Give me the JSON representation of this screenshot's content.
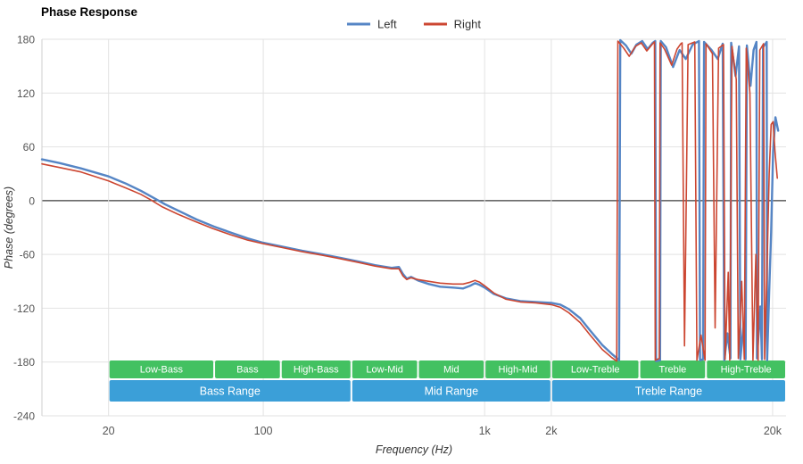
{
  "chart_data": {
    "type": "line",
    "title": "Phase Response",
    "xlabel": "Frequency (Hz)",
    "ylabel": "Phase (degrees)",
    "x_scale": "log",
    "xlim": [
      10,
      23000
    ],
    "ylim": [
      -240,
      180
    ],
    "y_ticks": [
      180,
      120,
      60,
      0,
      -60,
      -120,
      -180,
      -240
    ],
    "x_ticks": [
      {
        "label": "20",
        "value": 20
      },
      {
        "label": "100",
        "value": 100
      },
      {
        "label": "1k",
        "value": 1000
      },
      {
        "label": "2k",
        "value": 2000
      },
      {
        "label": "20k",
        "value": 20000
      }
    ],
    "grid": true,
    "legend_position": "top-center",
    "appearance": {
      "grid_color": "#e2e2e2",
      "zero_line_color": "#3c3c3c",
      "axis_line_color": "#cfcfcf",
      "tick_text_color": "#555555",
      "band_text_color": "#ffffff"
    },
    "series": [
      {
        "name": "Left",
        "color": "#5585c5",
        "width": 2.4,
        "points": [
          [
            10,
            46
          ],
          [
            12,
            42
          ],
          [
            15,
            36
          ],
          [
            20,
            27
          ],
          [
            24,
            19
          ],
          [
            28,
            11
          ],
          [
            32,
            3
          ],
          [
            36,
            -4
          ],
          [
            42,
            -12
          ],
          [
            50,
            -21
          ],
          [
            60,
            -29
          ],
          [
            72,
            -36
          ],
          [
            85,
            -42
          ],
          [
            100,
            -47
          ],
          [
            120,
            -51
          ],
          [
            150,
            -56
          ],
          [
            185,
            -60
          ],
          [
            225,
            -64
          ],
          [
            270,
            -68
          ],
          [
            320,
            -72
          ],
          [
            380,
            -75
          ],
          [
            410,
            -74
          ],
          [
            428,
            -82
          ],
          [
            445,
            -87
          ],
          [
            465,
            -85
          ],
          [
            500,
            -89
          ],
          [
            560,
            -93
          ],
          [
            630,
            -96
          ],
          [
            720,
            -97
          ],
          [
            800,
            -98
          ],
          [
            860,
            -95
          ],
          [
            905,
            -92
          ],
          [
            950,
            -94
          ],
          [
            1000,
            -97
          ],
          [
            1100,
            -104
          ],
          [
            1250,
            -109
          ],
          [
            1450,
            -112
          ],
          [
            1700,
            -113
          ],
          [
            2000,
            -114
          ],
          [
            2200,
            -116
          ],
          [
            2400,
            -121
          ],
          [
            2700,
            -131
          ],
          [
            3000,
            -145
          ],
          [
            3400,
            -161
          ],
          [
            3800,
            -172
          ],
          [
            4050,
            -178
          ],
          [
            4100,
            179
          ],
          [
            4350,
            173
          ],
          [
            4600,
            164
          ],
          [
            4850,
            174
          ],
          [
            5150,
            178
          ],
          [
            5450,
            169
          ],
          [
            5750,
            176
          ],
          [
            5900,
            178
          ],
          [
            5950,
            -179
          ],
          [
            6200,
            -178
          ],
          [
            6250,
            178
          ],
          [
            6600,
            171
          ],
          [
            7100,
            149
          ],
          [
            7600,
            168
          ],
          [
            8100,
            158
          ],
          [
            8700,
            174
          ],
          [
            9300,
            178
          ],
          [
            9400,
            -178
          ],
          [
            9700,
            -177
          ],
          [
            9800,
            177
          ],
          [
            10600,
            168
          ],
          [
            11300,
            158
          ],
          [
            11900,
            175
          ],
          [
            12100,
            -178
          ],
          [
            12500,
            -148
          ],
          [
            12900,
            -176
          ],
          [
            13000,
            176
          ],
          [
            13600,
            139
          ],
          [
            14100,
            172
          ],
          [
            14300,
            -177
          ],
          [
            14800,
            -138
          ],
          [
            15100,
            -177
          ],
          [
            15300,
            173
          ],
          [
            15900,
            128
          ],
          [
            16400,
            168
          ],
          [
            16900,
            177
          ],
          [
            17000,
            -176
          ],
          [
            17600,
            -118
          ],
          [
            17900,
            -177
          ],
          [
            18100,
            171
          ],
          [
            18800,
            177
          ],
          [
            18900,
            -178
          ],
          [
            19300,
            -102
          ],
          [
            19700,
            -35
          ],
          [
            20100,
            55
          ],
          [
            20600,
            93
          ],
          [
            21200,
            78
          ]
        ]
      },
      {
        "name": "Right",
        "color": "#cc4631",
        "width": 1.6,
        "points": [
          [
            10,
            41
          ],
          [
            12,
            37
          ],
          [
            15,
            32
          ],
          [
            20,
            22
          ],
          [
            24,
            14
          ],
          [
            28,
            7
          ],
          [
            31,
            1
          ],
          [
            35,
            -7
          ],
          [
            41,
            -15
          ],
          [
            49,
            -23
          ],
          [
            59,
            -31
          ],
          [
            71,
            -38
          ],
          [
            85,
            -44
          ],
          [
            100,
            -48
          ],
          [
            120,
            -52
          ],
          [
            150,
            -57
          ],
          [
            185,
            -61
          ],
          [
            225,
            -65
          ],
          [
            270,
            -69
          ],
          [
            320,
            -73
          ],
          [
            380,
            -76
          ],
          [
            410,
            -76
          ],
          [
            428,
            -84
          ],
          [
            445,
            -88
          ],
          [
            465,
            -86
          ],
          [
            500,
            -88
          ],
          [
            560,
            -90
          ],
          [
            630,
            -92
          ],
          [
            720,
            -93
          ],
          [
            800,
            -93
          ],
          [
            860,
            -91
          ],
          [
            905,
            -89
          ],
          [
            950,
            -91
          ],
          [
            1000,
            -95
          ],
          [
            1100,
            -103
          ],
          [
            1250,
            -110
          ],
          [
            1450,
            -113
          ],
          [
            1700,
            -114
          ],
          [
            2000,
            -116
          ],
          [
            2200,
            -119
          ],
          [
            2400,
            -125
          ],
          [
            2700,
            -136
          ],
          [
            3000,
            -150
          ],
          [
            3400,
            -166
          ],
          [
            3750,
            -175
          ],
          [
            3950,
            -179
          ],
          [
            4000,
            178
          ],
          [
            4250,
            170
          ],
          [
            4500,
            161
          ],
          [
            4800,
            172
          ],
          [
            5100,
            176
          ],
          [
            5400,
            167
          ],
          [
            5700,
            174
          ],
          [
            5850,
            177
          ],
          [
            5900,
            -178
          ],
          [
            6150,
            -176
          ],
          [
            6200,
            176
          ],
          [
            6500,
            169
          ],
          [
            7000,
            151
          ],
          [
            7400,
            169
          ],
          [
            7700,
            175
          ],
          [
            7800,
            176
          ],
          [
            8000,
            -162
          ],
          [
            8300,
            174
          ],
          [
            8900,
            177
          ],
          [
            9100,
            -178
          ],
          [
            9500,
            -150
          ],
          [
            9900,
            -178
          ],
          [
            10000,
            175
          ],
          [
            10700,
            164
          ],
          [
            11000,
            -142
          ],
          [
            11400,
            170
          ],
          [
            12000,
            174
          ],
          [
            12200,
            -177
          ],
          [
            12600,
            -80
          ],
          [
            12800,
            -178
          ],
          [
            13100,
            172
          ],
          [
            13700,
            135
          ],
          [
            14000,
            -176
          ],
          [
            14500,
            -90
          ],
          [
            14900,
            -177
          ],
          [
            15200,
            170
          ],
          [
            15800,
            120
          ],
          [
            16300,
            -178
          ],
          [
            16800,
            -60
          ],
          [
            17200,
            -178
          ],
          [
            17500,
            168
          ],
          [
            18200,
            175
          ],
          [
            18400,
            -177
          ],
          [
            18900,
            -70
          ],
          [
            19300,
            30
          ],
          [
            19700,
            85
          ],
          [
            20100,
            88
          ],
          [
            20500,
            55
          ],
          [
            21000,
            25
          ]
        ]
      }
    ],
    "bands": {
      "sub_bands": {
        "color": "#43c161",
        "items": [
          {
            "label": "Low-Bass",
            "from": 20,
            "to": 60
          },
          {
            "label": "Bass",
            "from": 60,
            "to": 120
          },
          {
            "label": "High-Bass",
            "from": 120,
            "to": 250
          },
          {
            "label": "Low-Mid",
            "from": 250,
            "to": 500
          },
          {
            "label": "Mid",
            "from": 500,
            "to": 1000
          },
          {
            "label": "High-Mid",
            "from": 1000,
            "to": 2000
          },
          {
            "label": "Low-Treble",
            "from": 2000,
            "to": 5000
          },
          {
            "label": "Treble",
            "from": 5000,
            "to": 10000
          },
          {
            "label": "High-Treble",
            "from": 10000,
            "to": 20000
          }
        ]
      },
      "ranges": {
        "color": "#3b9fd8",
        "items": [
          {
            "label": "Bass Range",
            "from": 20,
            "to": 250
          },
          {
            "label": "Mid Range",
            "from": 250,
            "to": 2000
          },
          {
            "label": "Treble Range",
            "from": 2000,
            "to": 20000
          }
        ]
      }
    }
  }
}
